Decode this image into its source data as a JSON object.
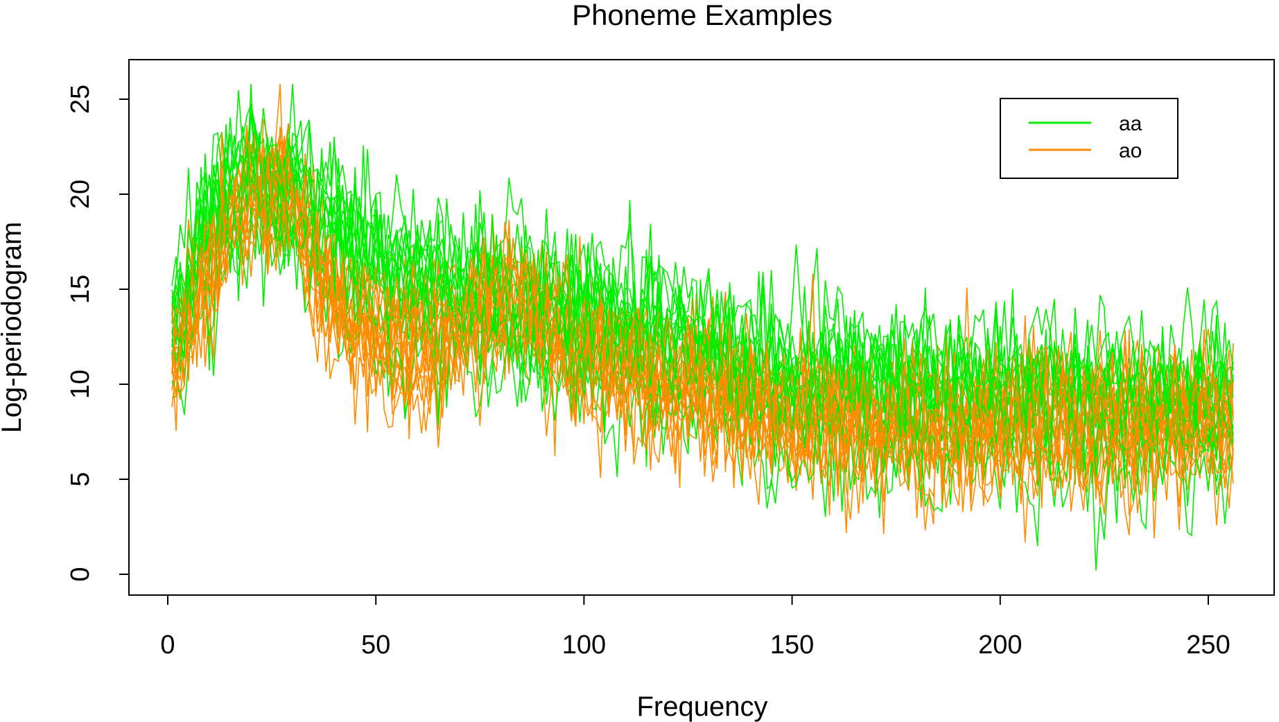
{
  "chart_data": {
    "type": "line",
    "title": "Phoneme Examples",
    "xlabel": "Frequency",
    "ylabel": "Log-periodogram",
    "xlim": [
      1,
      256
    ],
    "ylim": [
      0,
      26
    ],
    "x_ticks": [
      "0",
      "50",
      "100",
      "150",
      "200",
      "250"
    ],
    "y_ticks": [
      "0",
      "5",
      "10",
      "15",
      "20",
      "25"
    ],
    "legend_position": "top-right",
    "grid": false,
    "colors": {
      "aa": "#00ee00",
      "ao": "#ff8c00"
    },
    "groups": [
      {
        "name": "aa",
        "color": "#00ee00",
        "count": 15
      },
      {
        "name": "ao",
        "color": "#ff8c00",
        "count": 15
      }
    ],
    "envelope_description_points": {
      "aa_mean": [
        [
          1,
          12.5
        ],
        [
          10,
          18.5
        ],
        [
          20,
          21.5
        ],
        [
          30,
          20
        ],
        [
          40,
          18
        ],
        [
          50,
          16
        ],
        [
          60,
          15
        ],
        [
          75,
          14.5
        ],
        [
          100,
          13.5
        ],
        [
          125,
          12
        ],
        [
          150,
          10
        ],
        [
          175,
          9.5
        ],
        [
          200,
          9.5
        ],
        [
          225,
          9
        ],
        [
          256,
          9
        ]
      ],
      "ao_mean": [
        [
          1,
          11.5
        ],
        [
          10,
          17
        ],
        [
          20,
          20.5
        ],
        [
          30,
          20.5
        ],
        [
          40,
          15
        ],
        [
          50,
          13
        ],
        [
          60,
          12.5
        ],
        [
          75,
          14.5
        ],
        [
          85,
          15
        ],
        [
          100,
          12.5
        ],
        [
          125,
          10.5
        ],
        [
          150,
          9
        ],
        [
          175,
          8.5
        ],
        [
          200,
          8.5
        ],
        [
          225,
          8.5
        ],
        [
          256,
          8.5
        ]
      ]
    }
  }
}
